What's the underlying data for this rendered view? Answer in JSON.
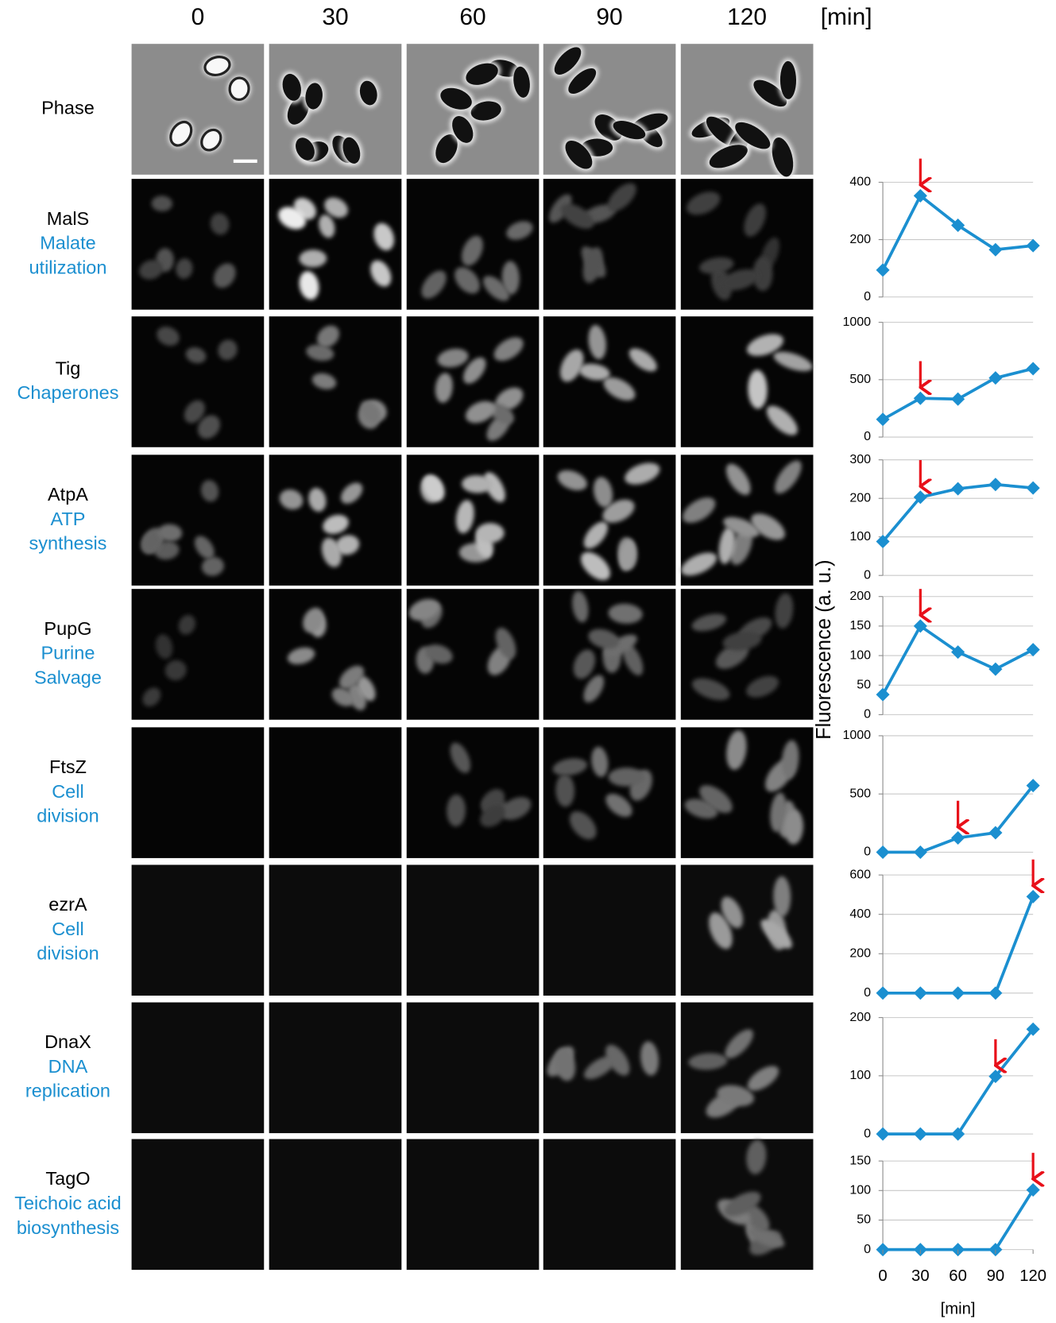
{
  "header": {
    "columns": [
      "0",
      "30",
      "60",
      "90",
      "120"
    ],
    "unit": "[min]"
  },
  "rows": [
    {
      "name": "Phase"
    },
    {
      "name": "MalS",
      "function": [
        "Malate",
        "utilization"
      ]
    },
    {
      "name": "Tig",
      "function": [
        "Chaperones"
      ]
    },
    {
      "name": "AtpA",
      "function": [
        "ATP",
        "synthesis"
      ]
    },
    {
      "name": "PupG",
      "function": [
        "Purine",
        "Salvage"
      ]
    },
    {
      "name": "FtsZ",
      "function": [
        "Cell",
        "division"
      ]
    },
    {
      "name": "ezrA",
      "function": [
        "Cell",
        "division"
      ]
    },
    {
      "name": "DnaX",
      "function": [
        "DNA",
        "replication"
      ]
    },
    {
      "name": "TagO",
      "function": [
        "Teichoic acid",
        "biosynthesis"
      ]
    }
  ],
  "chart_data": [
    {
      "type": "line",
      "x": [
        0,
        30,
        60,
        90,
        120
      ],
      "xlim": [
        0,
        120
      ],
      "values": [
        94,
        353,
        250,
        165,
        179
      ],
      "ylim": [
        0,
        400
      ],
      "yticks": [
        0,
        200,
        400
      ],
      "color": "#1b8fd0",
      "grid": true,
      "arrow_x": 30,
      "arrow_color": "#e8101a"
    },
    {
      "type": "line",
      "x": [
        0,
        30,
        60,
        90,
        120
      ],
      "xlim": [
        0,
        120
      ],
      "values": [
        154,
        338,
        331,
        515,
        596
      ],
      "ylim": [
        0,
        1000
      ],
      "yticks": [
        0,
        500,
        1000
      ],
      "color": "#1b8fd0",
      "grid": true,
      "arrow_x": 30,
      "arrow_color": "#e8101a"
    },
    {
      "type": "line",
      "x": [
        0,
        30,
        60,
        90,
        120
      ],
      "xlim": [
        0,
        120
      ],
      "values": [
        88,
        203,
        225,
        236,
        227
      ],
      "ylim": [
        0,
        300
      ],
      "yticks": [
        0,
        100,
        200,
        300
      ],
      "color": "#1b8fd0",
      "grid": true,
      "arrow_x": 30,
      "arrow_color": "#e8101a"
    },
    {
      "type": "line",
      "x": [
        0,
        30,
        60,
        90,
        120
      ],
      "xlim": [
        0,
        120
      ],
      "values": [
        34,
        150,
        106,
        77,
        110
      ],
      "ylim": [
        0,
        200
      ],
      "yticks": [
        0,
        50,
        100,
        150,
        200
      ],
      "color": "#1b8fd0",
      "grid": true,
      "arrow_x": 30,
      "arrow_color": "#e8101a",
      "ylabel": "Fluorescence (a. u.)"
    },
    {
      "type": "line",
      "x": [
        0,
        30,
        60,
        90,
        120
      ],
      "xlim": [
        0,
        120
      ],
      "values": [
        0,
        0,
        123,
        167,
        572
      ],
      "ylim": [
        0,
        1000
      ],
      "yticks": [
        0,
        500,
        1000
      ],
      "color": "#1b8fd0",
      "grid": true,
      "arrow_x": 60,
      "arrow_color": "#e8101a"
    },
    {
      "type": "line",
      "x": [
        0,
        30,
        60,
        90,
        120
      ],
      "xlim": [
        0,
        120
      ],
      "values": [
        0,
        0,
        0,
        0,
        490
      ],
      "ylim": [
        0,
        600
      ],
      "yticks": [
        0,
        200,
        400,
        600
      ],
      "color": "#1b8fd0",
      "grid": true,
      "arrow_x": 120,
      "arrow_color": "#e8101a"
    },
    {
      "type": "line",
      "x": [
        0,
        30,
        60,
        90,
        120
      ],
      "xlim": [
        0,
        120
      ],
      "values": [
        0,
        0,
        0,
        99,
        180
      ],
      "ylim": [
        0,
        200
      ],
      "yticks": [
        0,
        100,
        200
      ],
      "color": "#1b8fd0",
      "grid": true,
      "arrow_x": 90,
      "arrow_color": "#e8101a"
    },
    {
      "type": "line",
      "x": [
        0,
        30,
        60,
        90,
        120
      ],
      "xlim": [
        0,
        120
      ],
      "values": [
        0,
        0,
        0,
        0,
        101
      ],
      "ylim": [
        0,
        150
      ],
      "yticks": [
        0,
        50,
        100,
        150
      ],
      "color": "#1b8fd0",
      "grid": true,
      "arrow_x": 120,
      "arrow_color": "#e8101a",
      "xticks": [
        0,
        30,
        60,
        90,
        120
      ],
      "xlabel": "[min]"
    }
  ]
}
